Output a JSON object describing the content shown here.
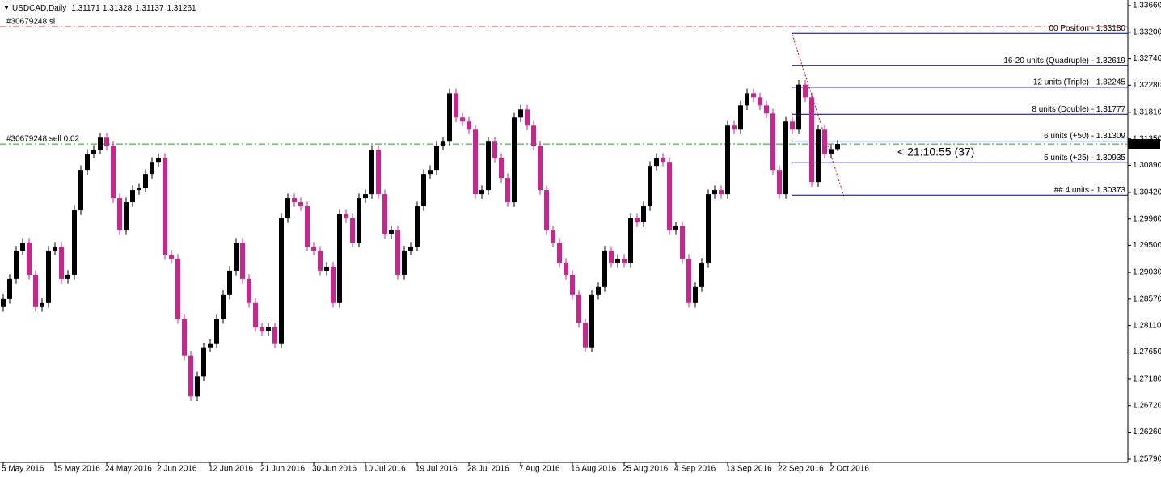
{
  "chart_data": {
    "type": "candlestick",
    "title": "USDCAD,Daily",
    "up_color": "#000000",
    "down_color": "#c8268e",
    "ylim": [
      1.2579,
      1.3366
    ],
    "yticks": [
      {
        "value": 1.3366,
        "label": "1.33660"
      },
      {
        "value": 1.332,
        "label": "1.33200"
      },
      {
        "value": 1.3274,
        "label": "1.32740"
      },
      {
        "value": 1.3228,
        "label": "1.32280"
      },
      {
        "value": 1.3181,
        "label": "1.31810"
      },
      {
        "value": 1.3135,
        "label": "1.31350"
      },
      {
        "value": 1.3089,
        "label": "1.30890"
      },
      {
        "value": 1.3042,
        "label": "1.30420"
      },
      {
        "value": 1.2996,
        "label": "1.29960"
      },
      {
        "value": 1.295,
        "label": "1.29500"
      },
      {
        "value": 1.2903,
        "label": "1.29030"
      },
      {
        "value": 1.2857,
        "label": "1.28570"
      },
      {
        "value": 1.2811,
        "label": "1.28110"
      },
      {
        "value": 1.2765,
        "label": "1.27650"
      },
      {
        "value": 1.2718,
        "label": "1.27180"
      },
      {
        "value": 1.2672,
        "label": "1.26720"
      },
      {
        "value": 1.2626,
        "label": "1.26260"
      },
      {
        "value": 1.2579,
        "label": "1.25790"
      }
    ],
    "categories": [
      "5 May 2016",
      null,
      null,
      null,
      null,
      null,
      null,
      null,
      "15 May 2016",
      null,
      null,
      null,
      null,
      null,
      null,
      null,
      "24 May 2016",
      null,
      null,
      null,
      null,
      null,
      null,
      null,
      "2 Jun 2016",
      null,
      null,
      null,
      null,
      null,
      null,
      null,
      "12 Jun 2016",
      null,
      null,
      null,
      null,
      null,
      null,
      null,
      "21 Jun 2016",
      null,
      null,
      null,
      null,
      null,
      null,
      null,
      "30 Jun 2016",
      null,
      null,
      null,
      null,
      null,
      null,
      null,
      "10 Jul 2016",
      null,
      null,
      null,
      null,
      null,
      null,
      null,
      "19 Jul 2016",
      null,
      null,
      null,
      null,
      null,
      null,
      null,
      "28 Jul 2016",
      null,
      null,
      null,
      null,
      null,
      null,
      null,
      "7 Aug 2016",
      null,
      null,
      null,
      null,
      null,
      null,
      null,
      "16 Aug 2016",
      null,
      null,
      null,
      null,
      null,
      null,
      null,
      "25 Aug 2016",
      null,
      null,
      null,
      null,
      null,
      null,
      null,
      "4 Sep 2016",
      null,
      null,
      null,
      null,
      null,
      null,
      null,
      "13 Sep 2016",
      null,
      null,
      null,
      null,
      null,
      null,
      null,
      "22 Sep 2016",
      null,
      null,
      null,
      null,
      null,
      null,
      null,
      "2 Oct 2016",
      null
    ],
    "open": [
      1.2843,
      1.2857,
      1.2892,
      1.2941,
      1.2955,
      1.2899,
      1.2843,
      1.285,
      1.2941,
      1.2948,
      1.2892,
      1.2899,
      1.3011,
      1.3081,
      1.3109,
      1.3116,
      1.3137,
      1.3123,
      1.3032,
      1.2976,
      1.3025,
      1.3046,
      1.305,
      1.3074,
      1.3095,
      1.3102,
      1.2934,
      1.2927,
      1.2822,
      1.2759,
      1.2688,
      1.2723,
      1.2773,
      1.278,
      1.2822,
      1.2864,
      1.2906,
      1.2955,
      1.2892,
      1.285,
      1.2808,
      1.2801,
      1.2808,
      1.278,
      1.2997,
      1.3032,
      1.3025,
      1.3018,
      1.2948,
      1.2941,
      1.2906,
      1.2913,
      1.285,
      1.3004,
      1.2997,
      1.2955,
      1.3032,
      1.3039,
      1.3116,
      1.3039,
      1.2969,
      1.2976,
      1.2899,
      1.2941,
      1.2948,
      1.3018,
      1.3074,
      1.3081,
      1.3123,
      1.313,
      1.3214,
      1.3172,
      1.3165,
      1.3151,
      1.3039,
      1.3046,
      1.313,
      1.3102,
      1.3067,
      1.3025,
      1.3172,
      1.3186,
      1.3158,
      1.3123,
      1.3046,
      1.2976,
      1.2955,
      1.292,
      1.2899,
      1.2864,
      1.2815,
      1.2773,
      1.2864,
      1.2878,
      1.2941,
      1.292,
      1.2927,
      1.292,
      1.2997,
      1.299,
      1.3018,
      1.3088,
      1.3102,
      1.3095,
      1.2976,
      1.2983,
      1.2927,
      1.285,
      1.2878,
      1.292,
      1.3039,
      1.3046,
      1.3039,
      1.3158,
      1.3151,
      1.3193,
      1.3214,
      1.3207,
      1.3193,
      1.3179,
      1.3081,
      1.3039,
      1.3165,
      1.3151,
      1.3229,
      1.3207,
      1.306,
      1.3151,
      1.3109,
      1.31171
    ],
    "high": [
      1.2865,
      1.29,
      1.2949,
      1.2963,
      1.2963,
      1.2907,
      1.2858,
      1.2949,
      1.2956,
      1.2956,
      1.2907,
      1.3019,
      1.3089,
      1.3117,
      1.3124,
      1.3145,
      1.3145,
      1.3131,
      1.304,
      1.3033,
      1.3054,
      1.3058,
      1.3082,
      1.3103,
      1.311,
      1.311,
      1.2942,
      1.2935,
      1.283,
      1.2767,
      1.2731,
      1.2781,
      1.2788,
      1.283,
      1.2872,
      1.2914,
      1.2963,
      1.2963,
      1.29,
      1.2858,
      1.2816,
      1.2816,
      1.2816,
      1.3005,
      1.304,
      1.304,
      1.3033,
      1.3026,
      1.2956,
      1.2949,
      1.2921,
      1.2921,
      1.3012,
      1.3012,
      1.3005,
      1.304,
      1.3047,
      1.3124,
      1.3124,
      1.3047,
      1.2984,
      1.2984,
      1.2949,
      1.2956,
      1.3026,
      1.3082,
      1.3089,
      1.3131,
      1.3138,
      1.3222,
      1.3222,
      1.318,
      1.3173,
      1.3159,
      1.3054,
      1.3138,
      1.3138,
      1.311,
      1.3075,
      1.318,
      1.3194,
      1.3194,
      1.3166,
      1.3131,
      1.3054,
      1.2984,
      1.2963,
      1.2928,
      1.2907,
      1.2872,
      1.2823,
      1.2872,
      1.2886,
      1.2949,
      1.2949,
      1.2935,
      1.2935,
      1.3005,
      1.3005,
      1.3026,
      1.3096,
      1.311,
      1.311,
      1.3103,
      1.2991,
      1.2991,
      1.2935,
      1.2886,
      1.2928,
      1.3047,
      1.3054,
      1.3054,
      1.3166,
      1.3166,
      1.3201,
      1.3222,
      1.3222,
      1.3215,
      1.3201,
      1.3187,
      1.3089,
      1.3173,
      1.3173,
      1.3237,
      1.3237,
      1.3215,
      1.3159,
      1.3159,
      1.3125,
      1.31328
    ],
    "low": [
      1.2835,
      1.2849,
      1.2884,
      1.2933,
      1.2891,
      1.2835,
      1.2835,
      1.2842,
      1.2933,
      1.2884,
      1.2884,
      1.2891,
      1.3003,
      1.3073,
      1.3101,
      1.3108,
      1.3115,
      1.3024,
      1.2968,
      1.2968,
      1.3017,
      1.3038,
      1.3042,
      1.3066,
      1.3087,
      1.2926,
      1.2919,
      1.2814,
      1.2751,
      1.268,
      1.268,
      1.2715,
      1.2765,
      1.2772,
      1.2814,
      1.2856,
      1.2898,
      1.2884,
      1.2842,
      1.28,
      1.2793,
      1.2793,
      1.2772,
      1.2772,
      1.2989,
      1.3017,
      1.301,
      1.294,
      1.2933,
      1.2898,
      1.2898,
      1.2842,
      1.2842,
      1.2989,
      1.2947,
      1.2947,
      1.3024,
      1.3031,
      1.3031,
      1.2961,
      1.2961,
      1.2891,
      1.2891,
      1.2933,
      1.294,
      1.301,
      1.3066,
      1.3073,
      1.3115,
      1.3122,
      1.3164,
      1.3157,
      1.3143,
      1.3031,
      1.3031,
      1.3038,
      1.3094,
      1.3059,
      1.3017,
      1.3017,
      1.3164,
      1.315,
      1.3115,
      1.3038,
      1.2968,
      1.2947,
      1.2912,
      1.2891,
      1.2856,
      1.2807,
      1.2765,
      1.2765,
      1.2856,
      1.287,
      1.2912,
      1.2912,
      1.2912,
      1.2912,
      1.2982,
      1.2982,
      1.301,
      1.308,
      1.3087,
      1.2968,
      1.2968,
      1.2919,
      1.2842,
      1.2842,
      1.287,
      1.2912,
      1.3031,
      1.3031,
      1.3031,
      1.3143,
      1.3143,
      1.3185,
      1.3199,
      1.3185,
      1.3171,
      1.3073,
      1.3031,
      1.3031,
      1.3143,
      1.3143,
      1.3199,
      1.3052,
      1.3052,
      1.3101,
      1.3101,
      1.31137
    ],
    "close": [
      1.2857,
      1.2892,
      1.2941,
      1.2955,
      1.2899,
      1.2843,
      1.285,
      1.2941,
      1.2948,
      1.2892,
      1.2899,
      1.3011,
      1.3081,
      1.3109,
      1.3116,
      1.3137,
      1.3123,
      1.3032,
      1.2976,
      1.3025,
      1.3046,
      1.305,
      1.3074,
      1.3095,
      1.3102,
      1.2934,
      1.2927,
      1.2822,
      1.2759,
      1.2688,
      1.2723,
      1.2773,
      1.278,
      1.2822,
      1.2864,
      1.2906,
      1.2955,
      1.2892,
      1.285,
      1.2808,
      1.2801,
      1.2808,
      1.278,
      1.2997,
      1.3032,
      1.3025,
      1.3018,
      1.2948,
      1.2941,
      1.2906,
      1.2913,
      1.285,
      1.3004,
      1.2997,
      1.2955,
      1.3032,
      1.3039,
      1.3116,
      1.3039,
      1.2969,
      1.2976,
      1.2899,
      1.2941,
      1.2948,
      1.3018,
      1.3074,
      1.3081,
      1.3123,
      1.313,
      1.3214,
      1.3172,
      1.3165,
      1.3151,
      1.3039,
      1.3046,
      1.313,
      1.3102,
      1.3067,
      1.3025,
      1.3172,
      1.3186,
      1.3158,
      1.3123,
      1.3046,
      1.2976,
      1.2955,
      1.292,
      1.2899,
      1.2864,
      1.2815,
      1.2773,
      1.2864,
      1.2878,
      1.2941,
      1.292,
      1.2927,
      1.292,
      1.2997,
      1.299,
      1.3018,
      1.3088,
      1.3102,
      1.3095,
      1.2976,
      1.2983,
      1.2927,
      1.285,
      1.2878,
      1.292,
      1.3039,
      1.3046,
      1.3039,
      1.3158,
      1.3151,
      1.3193,
      1.3214,
      1.3207,
      1.3193,
      1.3179,
      1.3081,
      1.3039,
      1.3165,
      1.3151,
      1.3229,
      1.3207,
      1.306,
      1.3151,
      1.3109,
      1.31171,
      1.31261
    ],
    "level_color": "#00008b",
    "levels": [
      {
        "label": "00 Position - 1.33180",
        "value": 1.3318
      },
      {
        "label": "16-20 units (Quadruple) - 1.32619",
        "value": 1.32619
      },
      {
        "label": "12 units (Triple) - 1.32245",
        "value": 1.32245
      },
      {
        "label": "8 units (Double) - 1.31777",
        "value": 1.31777
      },
      {
        "label": "6 units (+50) - 1.31309",
        "value": 1.31309
      },
      {
        "label": "5 units (+25) - 1.30935",
        "value": 1.30935
      },
      {
        "label": "## 4 units - 1.30373",
        "value": 1.30373
      }
    ],
    "orders": [
      {
        "label": "#30679248 sl",
        "value": 1.33294,
        "color": "#dd0000"
      },
      {
        "label": "#30679248 sell 0.02",
        "value": 1.3126,
        "color": "#00b000"
      }
    ],
    "countdown": "< 21:10:55 (37)"
  }
}
